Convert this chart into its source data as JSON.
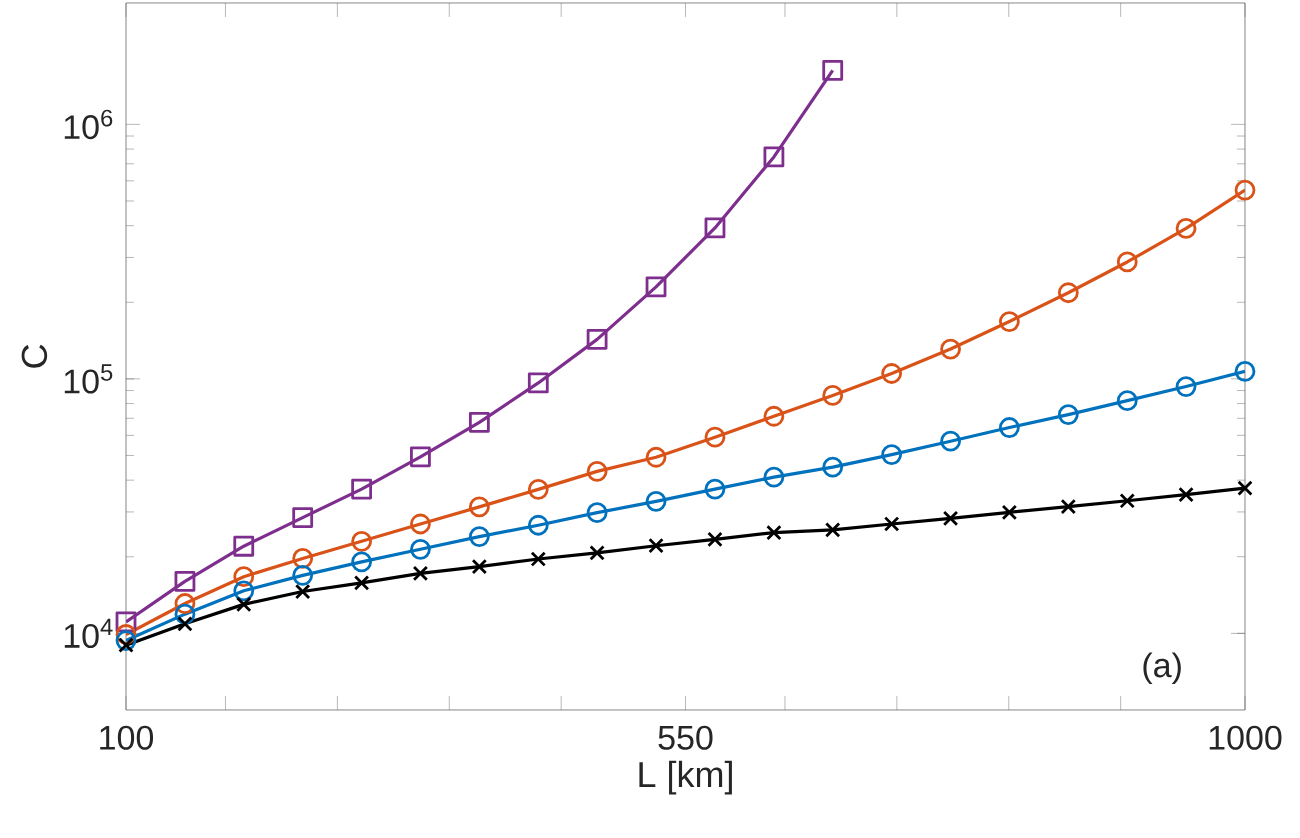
{
  "chart_data": {
    "type": "line",
    "xlabel": "L [km]",
    "ylabel": "C",
    "log": true,
    "line_style": "solid",
    "x": [
      100,
      147.4,
      194.7,
      242.1,
      289.5,
      336.8,
      384.2,
      431.6,
      478.9,
      526.3,
      573.7,
      621.1,
      668.4,
      715.8,
      763.2,
      810.5,
      857.9,
      905.3,
      952.6,
      1000
    ],
    "xlim": [
      100,
      1000
    ],
    "xticks": [
      100,
      {
        "value": 180,
        "label": null
      },
      {
        "value": 270,
        "label": null
      },
      {
        "value": 360,
        "label": null
      },
      {
        "value": 450,
        "label": null
      },
      550,
      {
        "value": 630,
        "label": null
      },
      {
        "value": 720,
        "label": null
      },
      {
        "value": 810,
        "label": null
      },
      {
        "value": 900,
        "label": null
      },
      1000
    ],
    "ylim": [
      5000,
      3000000
    ],
    "yticks": [
      {
        "value": 10000,
        "label": "10$^{4}$"
      },
      {
        "value": 100000,
        "label": "10$^{5}$"
      },
      {
        "value": 1000000,
        "label": "10$^{6}$"
      }
    ],
    "annotations": [
      "(a)"
    ],
    "series": [
      {
        "color": "#7e2f8e",
        "marker": "square",
        "values": [
          11100,
          16000,
          22000,
          28500,
          36900,
          49400,
          67500,
          96400,
          143000,
          230000,
          392000,
          745000,
          1630000,
          null,
          null,
          null,
          null,
          null,
          null,
          null
        ]
      },
      {
        "color": "#d95319",
        "marker": "circle",
        "values": [
          9900,
          13100,
          16700,
          19700,
          23000,
          26900,
          31400,
          36800,
          43300,
          49200,
          59000,
          71300,
          86100,
          105000,
          131000,
          168000,
          218000,
          288000,
          390000,
          552000
        ]
      },
      {
        "color": "#0072bd",
        "marker": "circle",
        "values": [
          9370,
          11900,
          14700,
          16900,
          19100,
          21400,
          24000,
          26600,
          29800,
          33000,
          36900,
          41100,
          45000,
          50400,
          56900,
          64400,
          72400,
          82100,
          93300,
          107000
        ]
      },
      {
        "color": "#000000",
        "marker": "cross",
        "values": [
          8990,
          10900,
          13000,
          14600,
          15800,
          17200,
          18300,
          19600,
          20700,
          22100,
          23400,
          24900,
          25500,
          26900,
          28300,
          29900,
          31500,
          33200,
          35100,
          37200
        ]
      }
    ]
  }
}
